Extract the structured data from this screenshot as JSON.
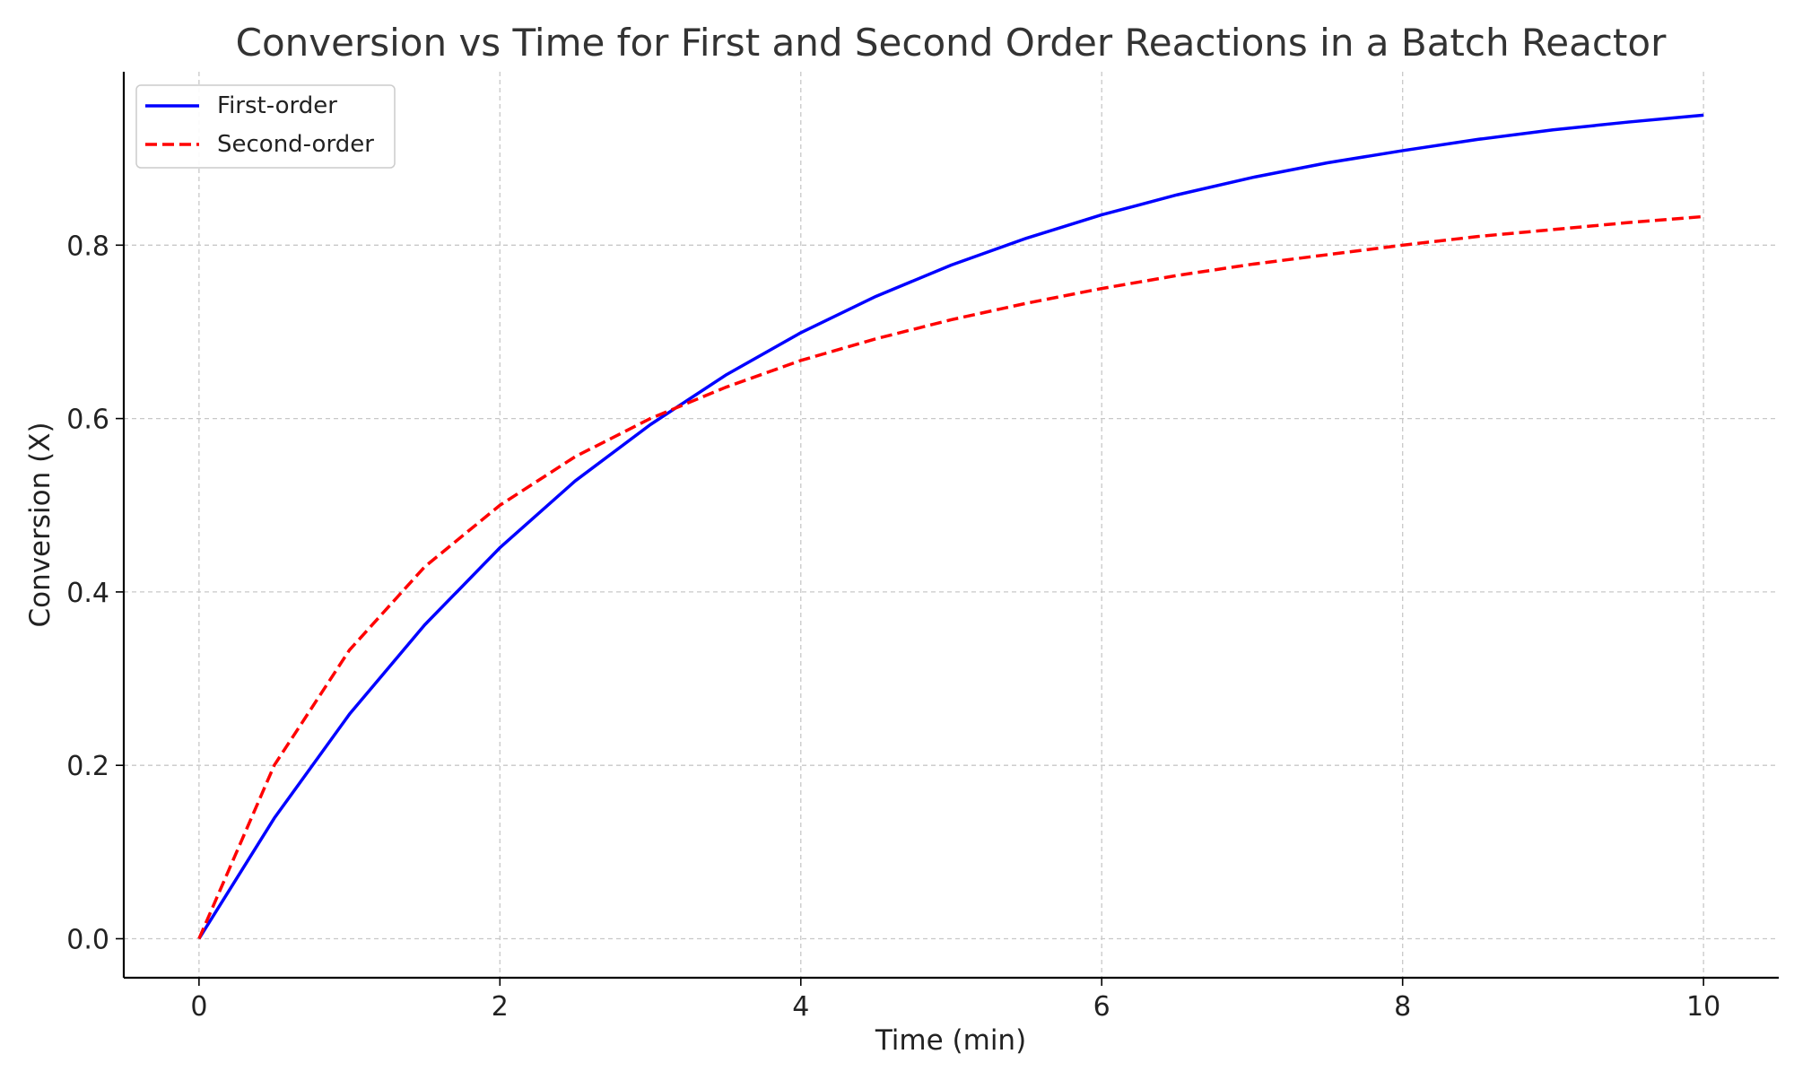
{
  "chart_data": {
    "type": "line",
    "title": "Conversion vs Time for First and Second Order Reactions in a Batch Reactor",
    "xlabel": "Time (min)",
    "ylabel": "Conversion (X)",
    "xlim": [
      -0.5,
      10.5
    ],
    "ylim": [
      -0.045,
      1.0
    ],
    "xticks": [
      0,
      2,
      4,
      6,
      8,
      10
    ],
    "xtick_labels": [
      "0",
      "2",
      "4",
      "6",
      "8",
      "10"
    ],
    "yticks": [
      0.0,
      0.2,
      0.4,
      0.6,
      0.8
    ],
    "ytick_labels": [
      "0.0",
      "0.2",
      "0.4",
      "0.6",
      "0.8"
    ],
    "grid": true,
    "legend_position": "top-left",
    "x": [
      0,
      0.5,
      1,
      1.5,
      2,
      2.5,
      3,
      3.5,
      4,
      4.5,
      5,
      5.5,
      6,
      6.5,
      7,
      7.5,
      8,
      8.5,
      9,
      9.5,
      10
    ],
    "series": [
      {
        "name": "First-order",
        "color": "#0000ff",
        "style": "solid",
        "values": [
          0.0,
          0.139,
          0.259,
          0.362,
          0.451,
          0.528,
          0.593,
          0.65,
          0.699,
          0.741,
          0.777,
          0.808,
          0.835,
          0.858,
          0.878,
          0.895,
          0.909,
          0.922,
          0.933,
          0.942,
          0.95
        ]
      },
      {
        "name": "Second-order",
        "color": "#ff0000",
        "style": "dashed",
        "values": [
          0.0,
          0.2,
          0.333,
          0.429,
          0.5,
          0.556,
          0.6,
          0.636,
          0.667,
          0.692,
          0.714,
          0.733,
          0.75,
          0.765,
          0.778,
          0.789,
          0.8,
          0.81,
          0.818,
          0.826,
          0.833
        ]
      }
    ]
  }
}
